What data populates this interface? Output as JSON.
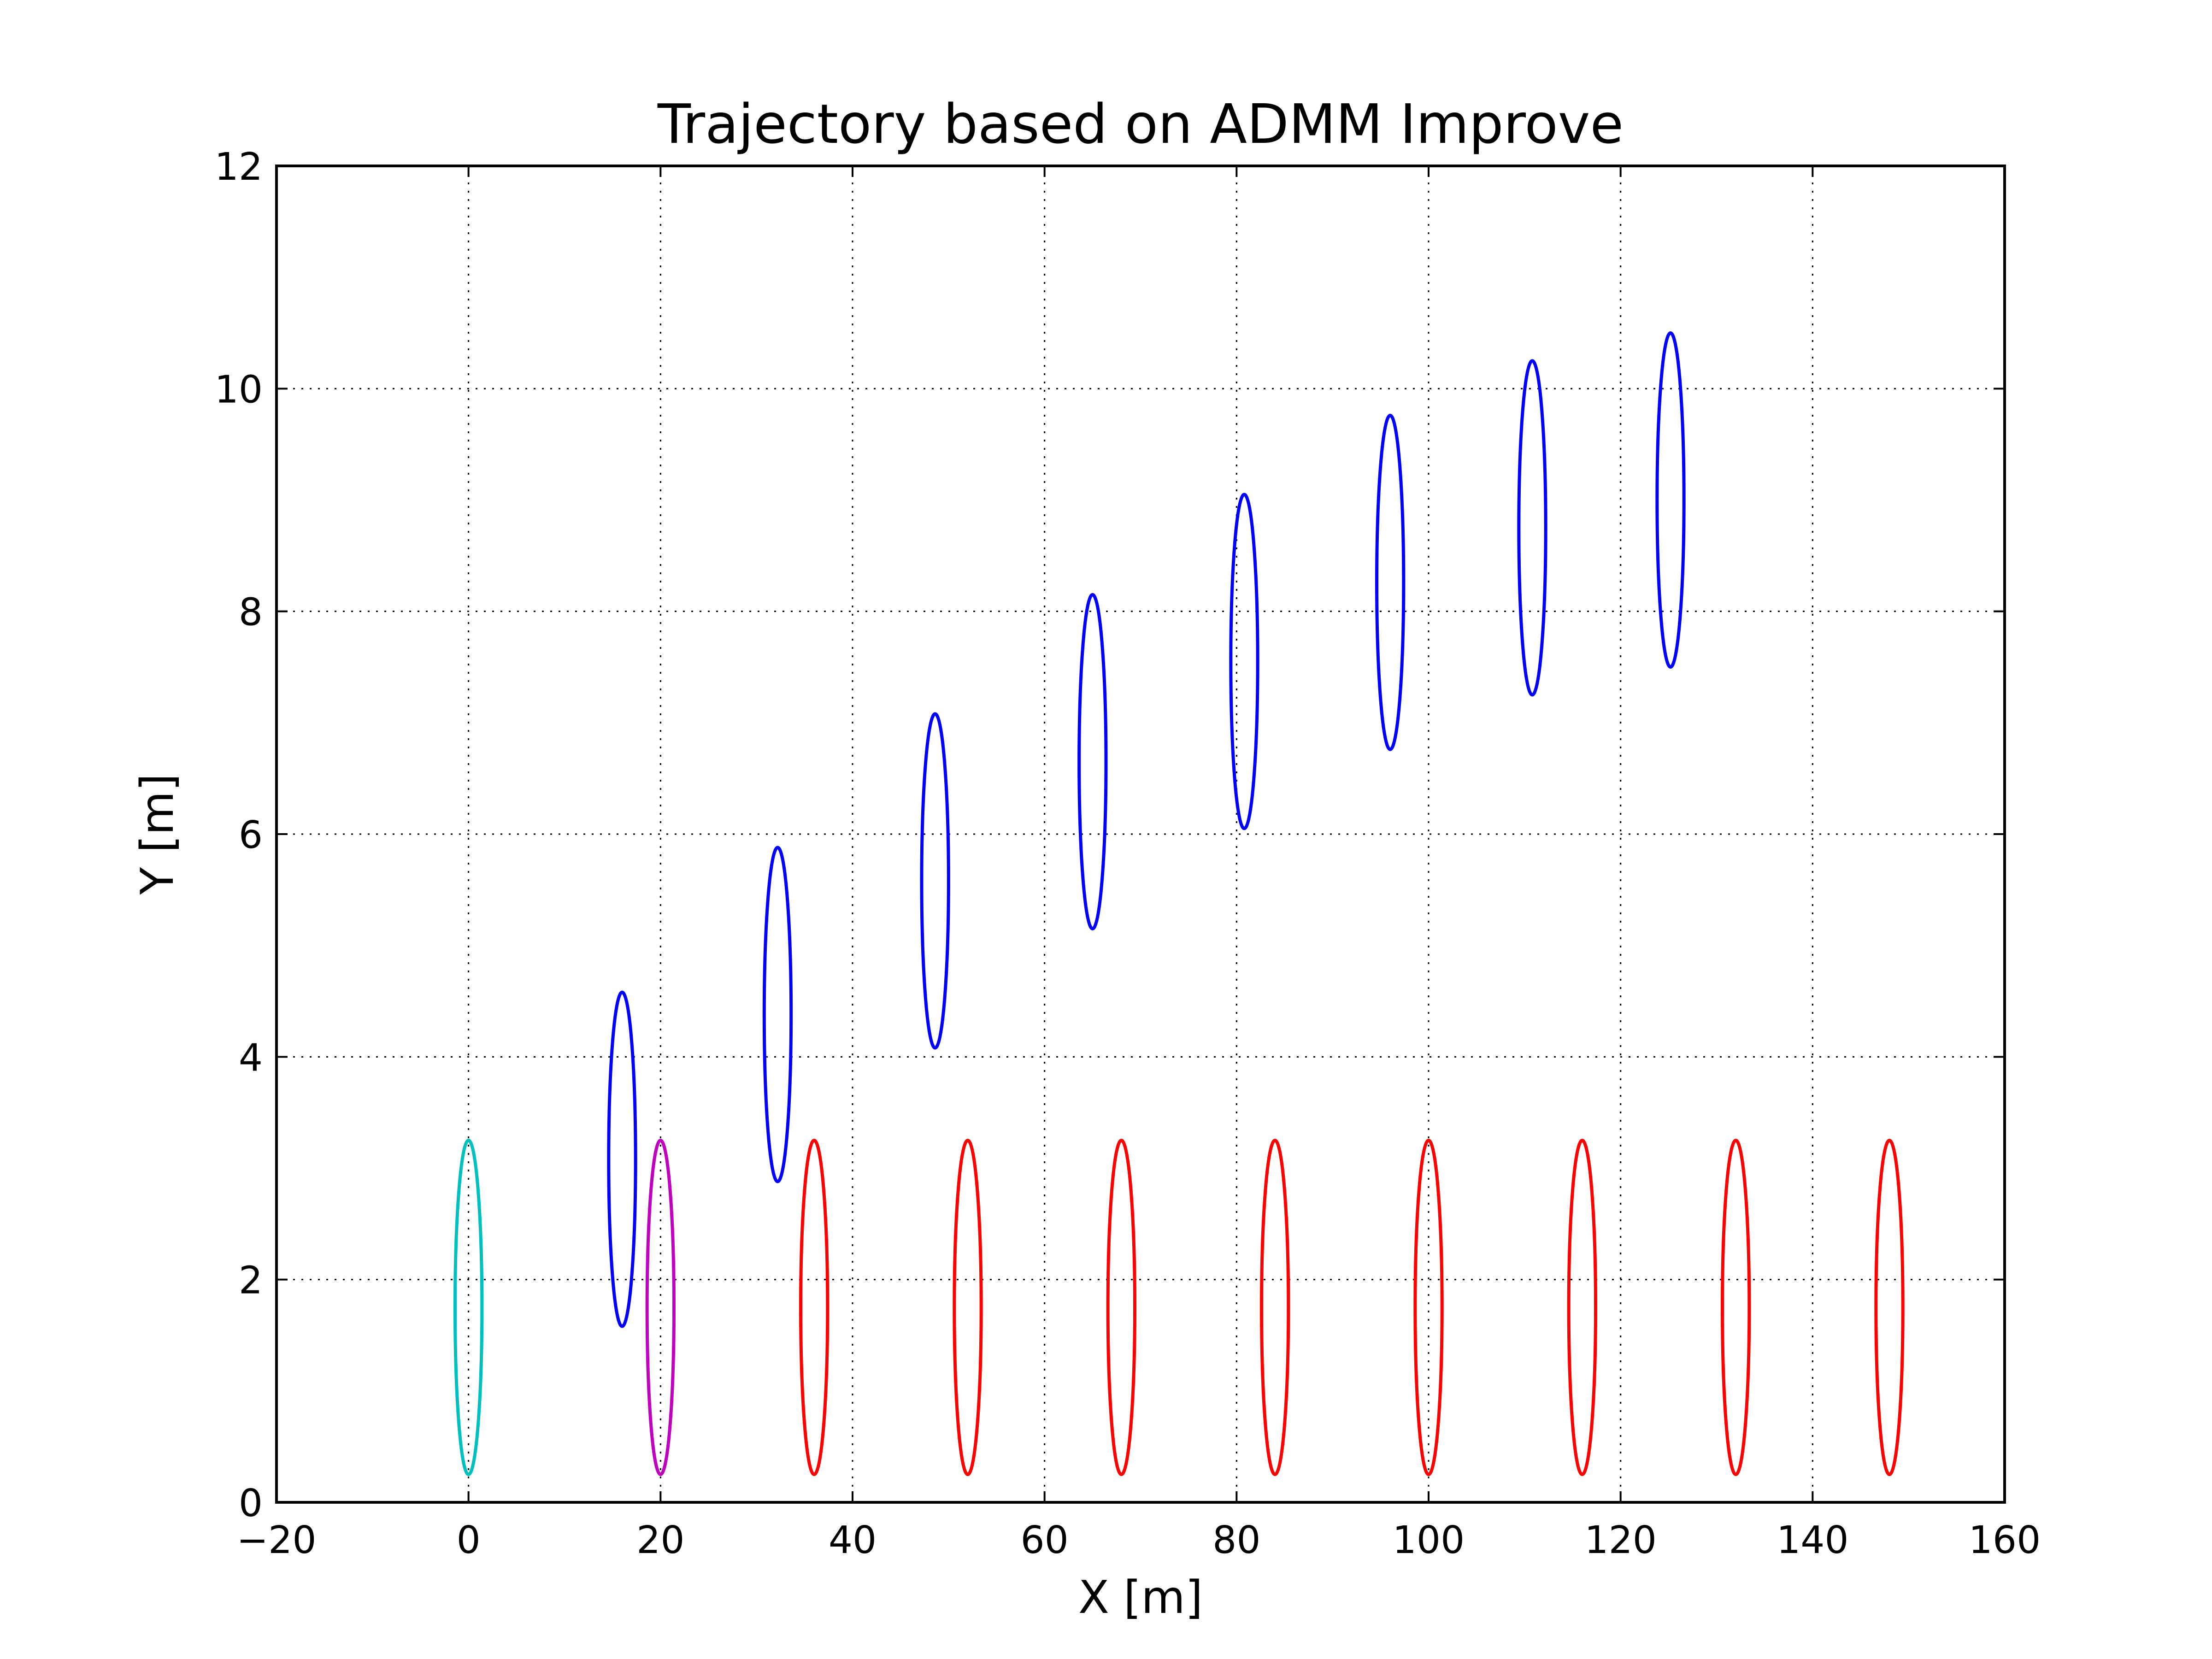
{
  "chart_data": {
    "type": "scatter",
    "title": "Trajectory based on ADMM Improve",
    "xlabel": "X [m]",
    "ylabel": "Y [m]",
    "xlim": [
      -20,
      160
    ],
    "ylim": [
      0,
      12
    ],
    "xticks": [
      -20,
      0,
      20,
      40,
      60,
      80,
      100,
      120,
      140,
      160
    ],
    "yticks": [
      0,
      2,
      4,
      6,
      8,
      10,
      12
    ],
    "xtick_labels": [
      "−20",
      "0",
      "20",
      "40",
      "60",
      "80",
      "100",
      "120",
      "140",
      "160"
    ],
    "ytick_labels": [
      "0",
      "2",
      "4",
      "6",
      "8",
      "10",
      "12"
    ],
    "grid": true,
    "grid_style": "dotted",
    "marker": "ellipse",
    "ellipse_half_width": 1.4,
    "ellipse_half_height": 1.5,
    "series": [
      {
        "color": "#00bfbf",
        "points": [
          {
            "x": 0,
            "y": 1.75
          }
        ]
      },
      {
        "color": "#bf00bf",
        "points": [
          {
            "x": 20,
            "y": 1.75
          }
        ]
      },
      {
        "color": "#ff0000",
        "points": [
          {
            "x": 36,
            "y": 1.75
          },
          {
            "x": 52,
            "y": 1.75
          },
          {
            "x": 68,
            "y": 1.75
          },
          {
            "x": 84,
            "y": 1.75
          },
          {
            "x": 100,
            "y": 1.75
          },
          {
            "x": 116,
            "y": 1.75
          },
          {
            "x": 132,
            "y": 1.75
          },
          {
            "x": 148,
            "y": 1.75
          }
        ]
      },
      {
        "color": "#0000ff",
        "points": [
          {
            "x": 16,
            "y": 3.08
          },
          {
            "x": 32.2,
            "y": 4.38
          },
          {
            "x": 48.6,
            "y": 5.58
          },
          {
            "x": 65,
            "y": 6.65
          },
          {
            "x": 80.8,
            "y": 7.55
          },
          {
            "x": 96,
            "y": 8.26
          },
          {
            "x": 110.8,
            "y": 8.75
          },
          {
            "x": 125.2,
            "y": 9.0
          }
        ]
      }
    ]
  }
}
